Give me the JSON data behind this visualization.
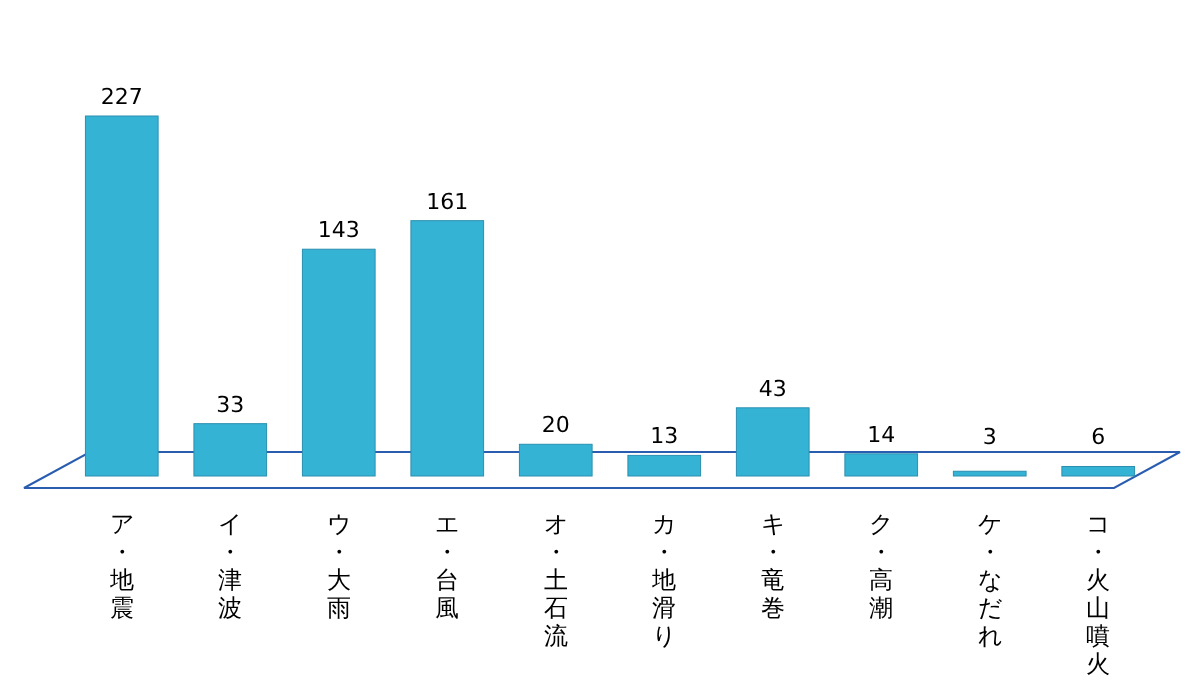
{
  "chart_data": {
    "type": "bar",
    "categories": [
      "ア・地震",
      "イ・津波",
      "ウ・大雨",
      "エ・台風",
      "オ・土石流",
      "カ・地滑り",
      "キ・竜巻",
      "ク・高潮",
      "ケ・なだれ",
      "コ・火山噴火"
    ],
    "values": [
      227,
      33,
      143,
      161,
      20,
      13,
      43,
      14,
      3,
      6
    ],
    "color": "#35b3d4",
    "data_labels": true
  }
}
